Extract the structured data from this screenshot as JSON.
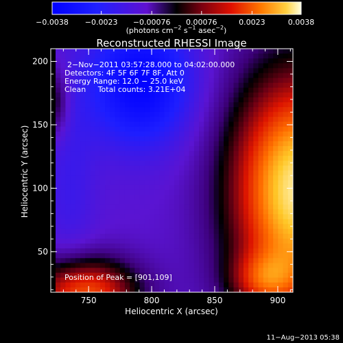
{
  "colorbar": {
    "ticks": [
      {
        "value": -0.0038,
        "label": "−0.0038"
      },
      {
        "value": -0.0023,
        "label": "−0.0023"
      },
      {
        "value": -0.00076,
        "label": "−0.00076"
      },
      {
        "value": 0.00076,
        "label": "0.00076"
      },
      {
        "value": 0.0023,
        "label": "0.0023"
      },
      {
        "value": 0.0038,
        "label": "0.0038"
      }
    ],
    "range": [
      -0.0038,
      0.0038
    ],
    "unit_main": "(photons cm",
    "unit_sup1": "−2",
    "unit_mid": " s",
    "unit_sup2": "−1",
    "unit_end": " asec",
    "unit_sup3": "−2",
    "unit_close": ")"
  },
  "title": "Reconstructed RHESSI Image",
  "info": {
    "time": "2−Nov−2011 03:57:28.000 to 04:02:00.000",
    "detectors": "Detectors: 4F 5F 6F 7F 8F, Att 0",
    "energy": "Energy Range: 12.0 − 25.0 keV",
    "clean": "Clean     Total counts: 3.21E+04",
    "peak": "Position of Peak = [901,109]"
  },
  "axes": {
    "xlabel": "Heliocentric X (arcsec)",
    "ylabel": "Heliocentric Y (arcsec)",
    "xrange": [
      720,
      912
    ],
    "yrange": [
      18,
      210
    ],
    "xticks": [
      {
        "value": 750,
        "label": "750"
      },
      {
        "value": 800,
        "label": "800"
      },
      {
        "value": 850,
        "label": "850"
      },
      {
        "value": 900,
        "label": "900"
      }
    ],
    "yticks": [
      {
        "value": 50,
        "label": "50"
      },
      {
        "value": 100,
        "label": "100"
      },
      {
        "value": 150,
        "label": "150"
      },
      {
        "value": 200,
        "label": "200"
      }
    ],
    "xminor_step": 10,
    "yminor_step": 10
  },
  "footer_date": "11−Aug−2013 05:38"
}
